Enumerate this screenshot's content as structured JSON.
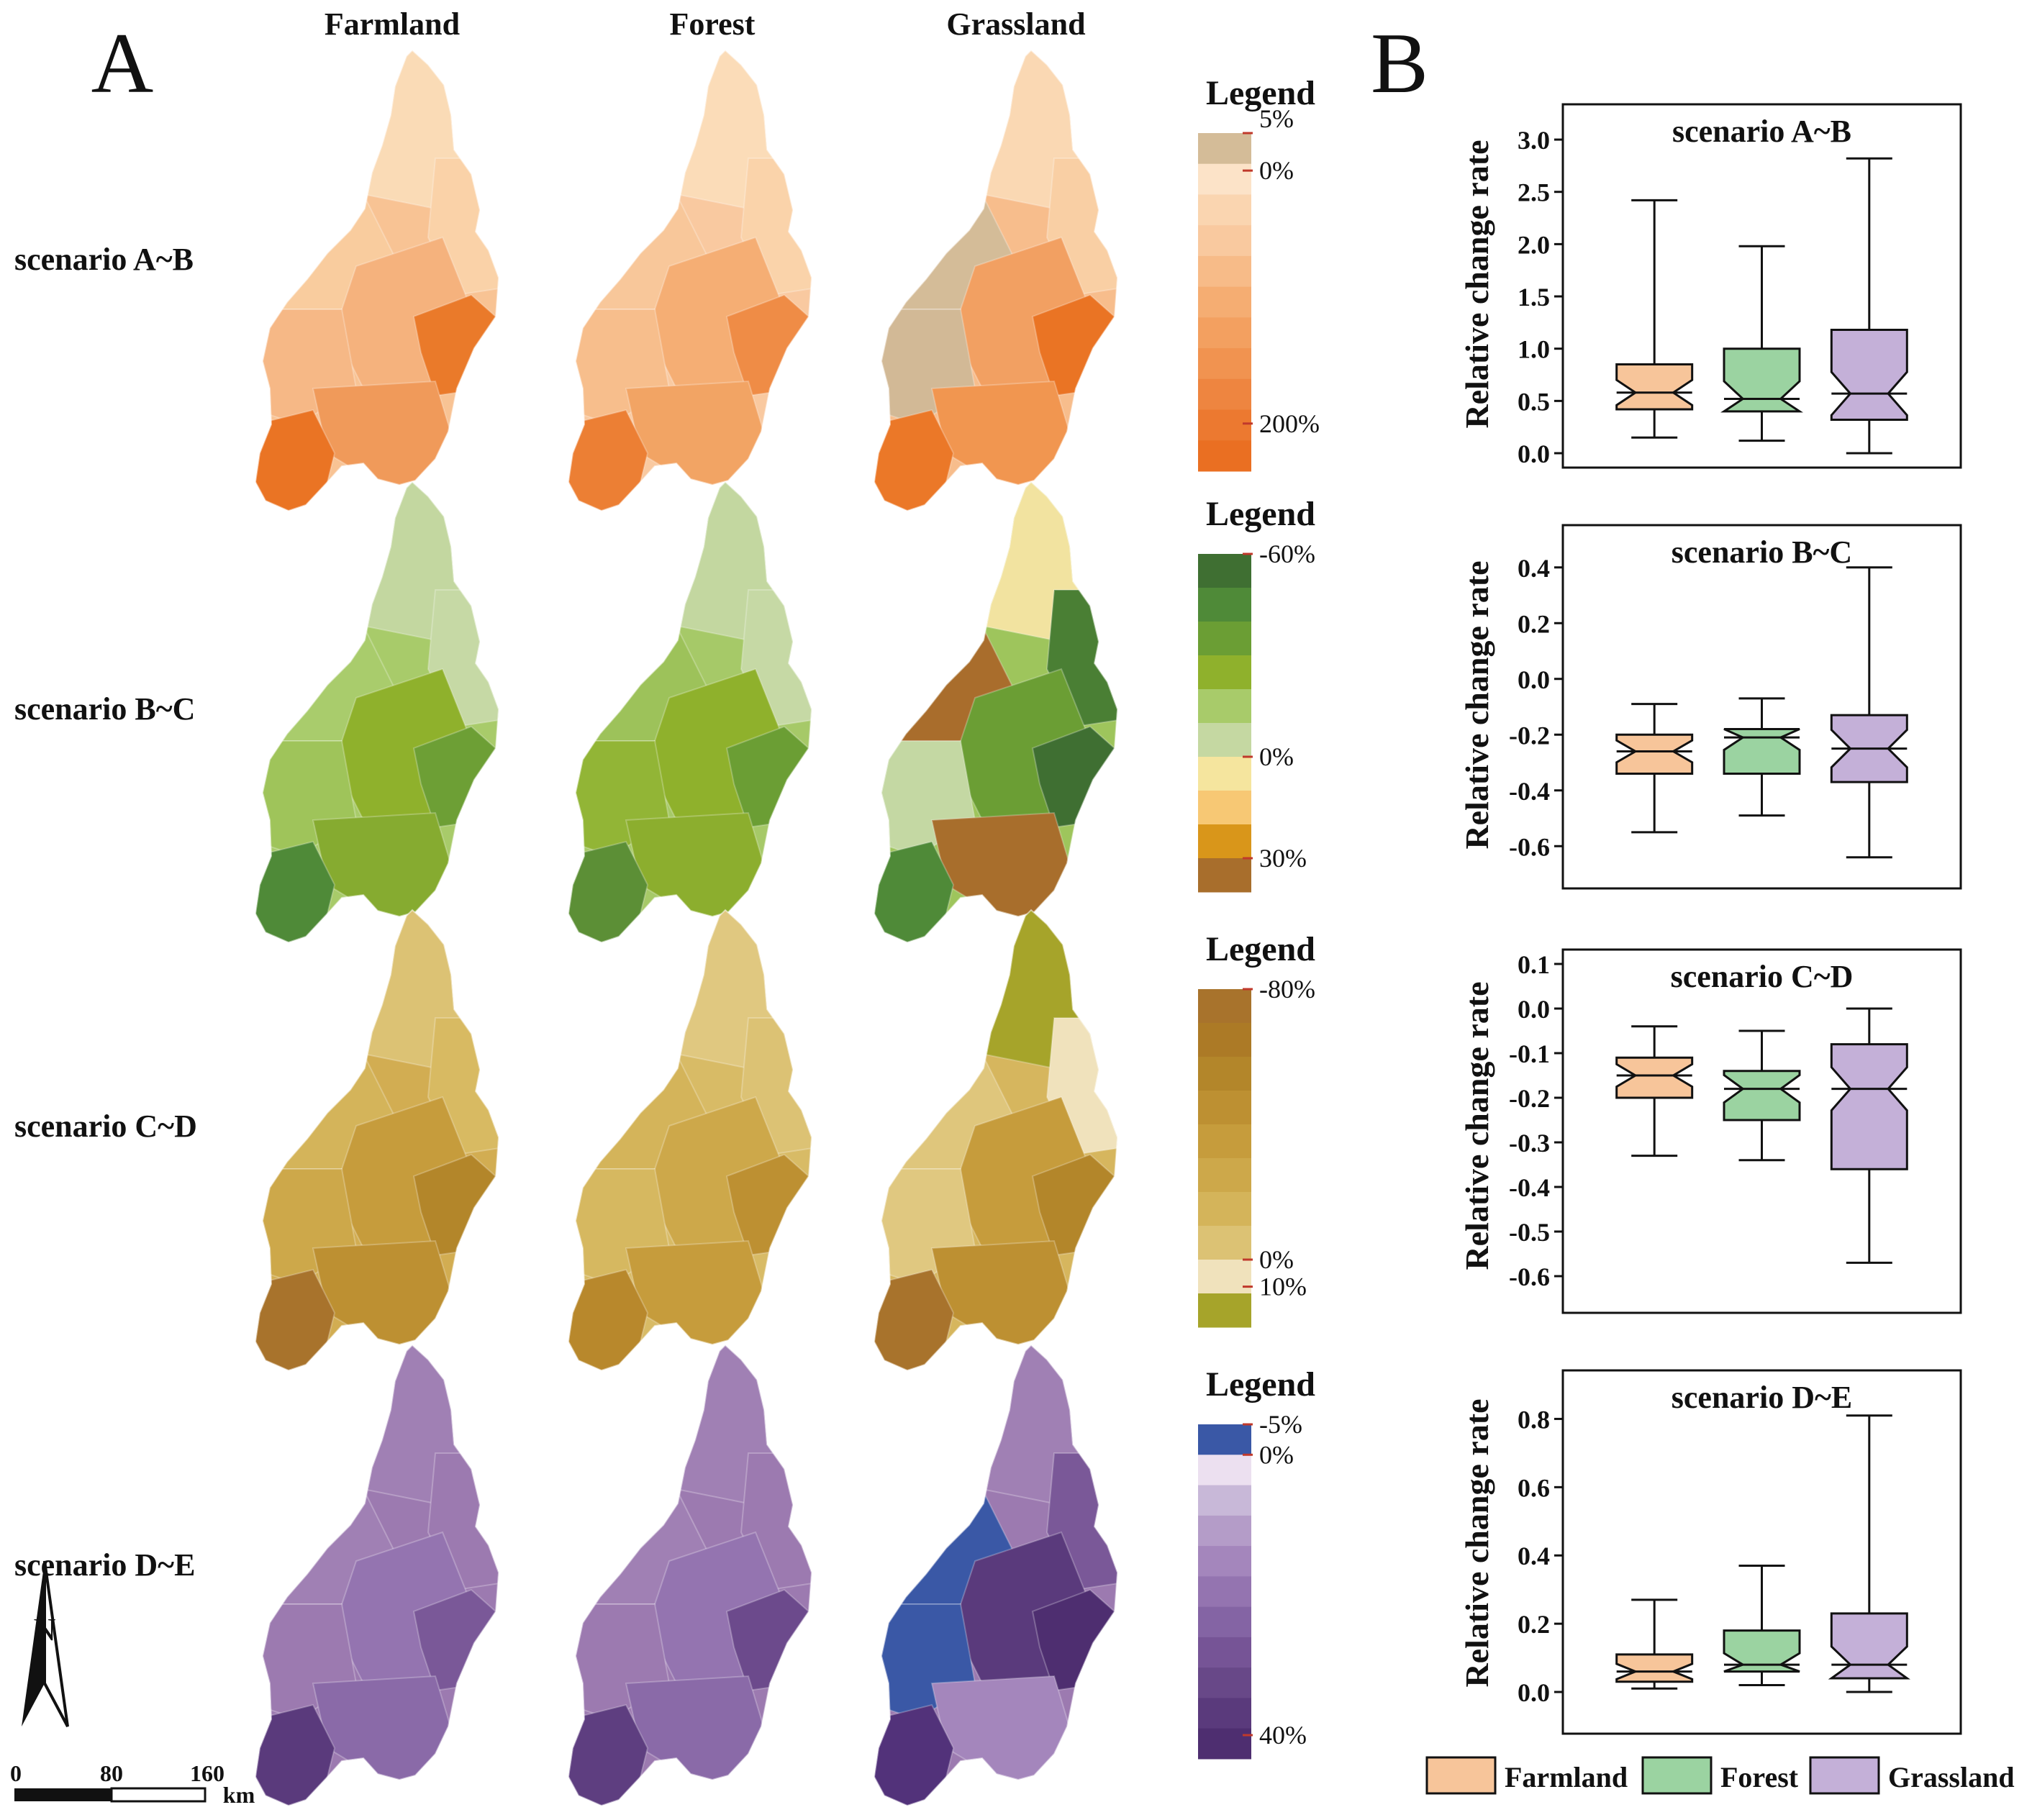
{
  "panels": {
    "a_label": "A",
    "b_label": "B"
  },
  "columns": [
    "Farmland",
    "Forest",
    "Grassland"
  ],
  "north_label": "N",
  "scale_bar": {
    "ticks": [
      "0",
      "80",
      "160"
    ],
    "unit": "km"
  },
  "colors": {
    "farmland": "#f7c59a",
    "forest": "#9bd3a1",
    "grassland": "#c4b0d8"
  },
  "map_rows": [
    {
      "label": "scenario A~B",
      "legend_title": "Legend",
      "legend_colors": [
        "#d4bc98",
        "#fce3c8",
        "#fad5b0",
        "#f9c99f",
        "#f7bb88",
        "#f5ad72",
        "#f3a060",
        "#f19350",
        "#ee8540",
        "#ec7930",
        "#ea6f22"
      ],
      "legend_ticks": [
        "5%",
        "0%",
        "200%"
      ],
      "maps": [
        {
          "base": "#f8c394",
          "north": "#fadbb6",
          "ne": "#fad2a8",
          "nw": "#f9cc9e",
          "mid": "#f5b27d",
          "w": "#f6b886",
          "se": "#ea7a2a",
          "sw": "#ea7424",
          "s": "#f09a5a"
        },
        {
          "base": "#f9c9a0",
          "north": "#fbdcb8",
          "ne": "#fad3aa",
          "nw": "#f8c79a",
          "mid": "#f5ae74",
          "w": "#f7be8c",
          "se": "#ef8c46",
          "sw": "#ec7f34",
          "s": "#f2a464"
        },
        {
          "base": "#f7bd8c",
          "north": "#fad8b3",
          "ne": "#f9cfa4",
          "nw": "#d4bc98",
          "mid": "#f2a062",
          "w": "#d2b996",
          "se": "#ea7424",
          "sw": "#eb7828",
          "s": "#f19650"
        }
      ]
    },
    {
      "label": "scenario B~C",
      "legend_title": "Legend",
      "legend_colors": [
        "#3f6f32",
        "#4f8a38",
        "#6b9e34",
        "#8fb12c",
        "#a8cb6a",
        "#c5d8a2",
        "#f5e59e",
        "#f7c874",
        "#d9961a",
        "#a86e2c"
      ],
      "legend_ticks": [
        "-60%",
        "0%",
        "30%"
      ],
      "maps": [
        {
          "base": "#a8cb6a",
          "north": "#c3d7a0",
          "ne": "#c6d9a5",
          "nw": "#a9cc6c",
          "mid": "#8fb12c",
          "w": "#9fc45a",
          "se": "#6d9f35",
          "sw": "#4f8a38",
          "s": "#86ab30"
        },
        {
          "base": "#a6c968",
          "north": "#c3d7a0",
          "ne": "#c6d9a5",
          "nw": "#9dc25a",
          "mid": "#8fb12c",
          "w": "#92b536",
          "se": "#6b9e34",
          "sw": "#5c8f36",
          "s": "#8cae2e"
        },
        {
          "base": "#9ec55c",
          "north": "#f2e3a0",
          "ne": "#4a7f34",
          "nw": "#a96d2c",
          "mid": "#6b9e34",
          "w": "#c4d8a3",
          "se": "#3f6f32",
          "sw": "#4f8a38",
          "s": "#a86e2c"
        }
      ]
    },
    {
      "label": "scenario C~D",
      "legend_title": "Legend",
      "legend_colors": [
        "#a8732c",
        "#ac7a26",
        "#b3862a",
        "#bd9032",
        "#c69c3c",
        "#cda84a",
        "#d4b45a",
        "#dcc274",
        "#f0e2bc",
        "#a6a42a"
      ],
      "legend_ticks": [
        "-80%",
        "0%",
        "10%"
      ],
      "maps": [
        {
          "base": "#d2ad52",
          "north": "#dcc274",
          "ne": "#d8ba62",
          "nw": "#d4b45a",
          "mid": "#c69c3c",
          "w": "#cda84a",
          "se": "#b3862a",
          "sw": "#a8732c",
          "s": "#bd9032"
        },
        {
          "base": "#d8bb66",
          "north": "#e0c880",
          "ne": "#dcc274",
          "nw": "#d4b45a",
          "mid": "#cda84a",
          "w": "#d6b860",
          "se": "#bd9032",
          "sw": "#b8882c",
          "s": "#c69c3c"
        },
        {
          "base": "#d6b65e",
          "north": "#a6a42a",
          "ne": "#f0e2bc",
          "nw": "#dfc67c",
          "mid": "#c69c3c",
          "w": "#e0c880",
          "se": "#b3862a",
          "sw": "#a8732c",
          "s": "#bd9032"
        }
      ]
    },
    {
      "label": "scenario D~E",
      "legend_title": "Legend",
      "legend_colors": [
        "#3a58a6",
        "#ece0f0",
        "#c8b8d8",
        "#b49cc8",
        "#a486bc",
        "#9474b0",
        "#8464a4",
        "#765496",
        "#684888",
        "#5a3a7c",
        "#4e2e70"
      ],
      "legend_ticks": [
        "-5%",
        "0%",
        "40%"
      ],
      "maps": [
        {
          "base": "#9c7ab0",
          "north": "#a080b4",
          "ne": "#9c7ab0",
          "nw": "#a080b4",
          "mid": "#9474b0",
          "w": "#9c7ab0",
          "se": "#7a5898",
          "sw": "#5a3a7c",
          "s": "#8a6aa8"
        },
        {
          "base": "#9c7ab0",
          "north": "#a080b4",
          "ne": "#9c7ab0",
          "nw": "#a080b4",
          "mid": "#9474b0",
          "w": "#9c7ab0",
          "se": "#6c4a8c",
          "sw": "#5e3e80",
          "s": "#8a6aa8"
        },
        {
          "base": "#9c7ab0",
          "north": "#a080b4",
          "ne": "#7a5898",
          "nw": "#3a58a6",
          "mid": "#5a3a7c",
          "w": "#3a58a6",
          "se": "#4e2e70",
          "sw": "#52327a",
          "s": "#a486bc"
        }
      ]
    }
  ],
  "chart_data": [
    {
      "type": "box",
      "title": "scenario A~B",
      "ylabel": "Relative change rate",
      "ylim": [
        0,
        3.2
      ],
      "yticks": [
        0.0,
        0.5,
        1.0,
        1.5,
        2.0,
        2.5,
        3.0
      ],
      "ytick_labels": [
        "0.0",
        "0.5",
        "1.0",
        "1.5",
        "2.0",
        "2.5",
        "3.0"
      ],
      "series": [
        {
          "name": "Farmland",
          "min": 0.15,
          "q1": 0.42,
          "median": 0.58,
          "q3": 0.85,
          "max": 2.42
        },
        {
          "name": "Forest",
          "min": 0.12,
          "q1": 0.4,
          "median": 0.52,
          "q3": 1.0,
          "max": 1.98
        },
        {
          "name": "Grassland",
          "min": 0.0,
          "q1": 0.32,
          "median": 0.57,
          "q3": 1.18,
          "max": 2.82
        }
      ]
    },
    {
      "type": "box",
      "title": "scenario B~C",
      "ylabel": "Relative change rate",
      "ylim": [
        -0.7,
        0.5
      ],
      "yticks": [
        -0.6,
        -0.4,
        -0.2,
        0.0,
        0.2,
        0.4
      ],
      "ytick_labels": [
        "-0.6",
        "-0.4",
        "-0.2",
        "0.0",
        "0.2",
        "0.4"
      ],
      "series": [
        {
          "name": "Farmland",
          "min": -0.55,
          "q1": -0.34,
          "median": -0.26,
          "q3": -0.2,
          "max": -0.09
        },
        {
          "name": "Forest",
          "min": -0.49,
          "q1": -0.34,
          "median": -0.21,
          "q3": -0.18,
          "max": -0.07
        },
        {
          "name": "Grassland",
          "min": -0.64,
          "q1": -0.37,
          "median": -0.25,
          "q3": -0.13,
          "max": 0.4
        }
      ]
    },
    {
      "type": "box",
      "title": "scenario C~D",
      "ylabel": "Relative change rate",
      "ylim": [
        -0.65,
        0.1
      ],
      "yticks": [
        -0.6,
        -0.5,
        -0.4,
        -0.3,
        -0.2,
        -0.1,
        0.0,
        0.1
      ],
      "ytick_labels": [
        "-0.6",
        "-0.5",
        "-0.4",
        "-0.3",
        "-0.2",
        "-0.1",
        "0.0",
        "0.1"
      ],
      "series": [
        {
          "name": "Farmland",
          "min": -0.33,
          "q1": -0.2,
          "median": -0.15,
          "q3": -0.11,
          "max": -0.04
        },
        {
          "name": "Forest",
          "min": -0.34,
          "q1": -0.25,
          "median": -0.18,
          "q3": -0.14,
          "max": -0.05
        },
        {
          "name": "Grassland",
          "min": -0.57,
          "q1": -0.36,
          "median": -0.18,
          "q3": -0.08,
          "max": 0.0
        }
      ]
    },
    {
      "type": "box",
      "title": "scenario D~E",
      "ylabel": "Relative change rate",
      "ylim": [
        -0.08,
        0.9
      ],
      "yticks": [
        0.0,
        0.2,
        0.4,
        0.6,
        0.8
      ],
      "ytick_labels": [
        "0.0",
        "0.2",
        "0.4",
        "0.6",
        "0.8"
      ],
      "series": [
        {
          "name": "Farmland",
          "min": 0.01,
          "q1": 0.03,
          "median": 0.06,
          "q3": 0.11,
          "max": 0.27
        },
        {
          "name": "Forest",
          "min": 0.02,
          "q1": 0.06,
          "median": 0.08,
          "q3": 0.18,
          "max": 0.37
        },
        {
          "name": "Grassland",
          "min": 0.0,
          "q1": 0.04,
          "median": 0.08,
          "q3": 0.23,
          "max": 0.81
        }
      ]
    }
  ],
  "box_legend": [
    "Farmland",
    "Forest",
    "Grassland"
  ]
}
